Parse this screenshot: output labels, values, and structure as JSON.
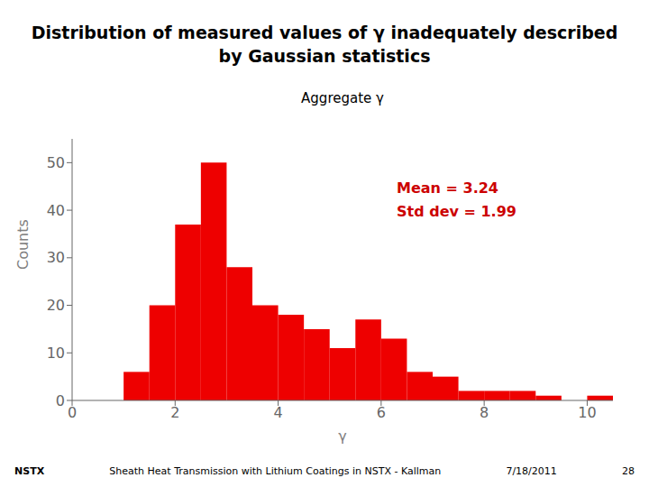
{
  "chart_data": {
    "type": "histogram",
    "title": [
      "Distribution of measured values of γ inadequately described",
      "by Gaussian statistics"
    ],
    "subtitle": "Aggregate γ",
    "xlabel": "γ",
    "ylabel": "Counts",
    "annotations": [
      {
        "text": "Mean = 3.24",
        "color": "#cc0000"
      },
      {
        "text": "Std dev = 1.99",
        "color": "#cc0000"
      }
    ],
    "footer": [
      "NSTX",
      "Sheath Heat Transmission with Lithium Coatings in NSTX - Kallman",
      "7/18/2011",
      "28"
    ],
    "bins": [
      0.5,
      1.0,
      1.5,
      2.0,
      2.5,
      3.0,
      3.5,
      4.0,
      4.5,
      5.0,
      5.5,
      6.0,
      6.5,
      7.0,
      7.5,
      8.0,
      8.5,
      9.0,
      9.5,
      10.0,
      10.5
    ],
    "counts": [
      0,
      6,
      20,
      37,
      50,
      28,
      20,
      18,
      15,
      11,
      17,
      13,
      6,
      5,
      2,
      2,
      2,
      1,
      0,
      1
    ],
    "color": "#ee0000",
    "xlim": [
      0,
      10.5
    ],
    "xticks": [
      0,
      2,
      4,
      6,
      8,
      10
    ],
    "ylim": [
      0,
      55
    ],
    "yticks": [
      0,
      10,
      20,
      30,
      40,
      50
    ],
    "grid": false
  }
}
